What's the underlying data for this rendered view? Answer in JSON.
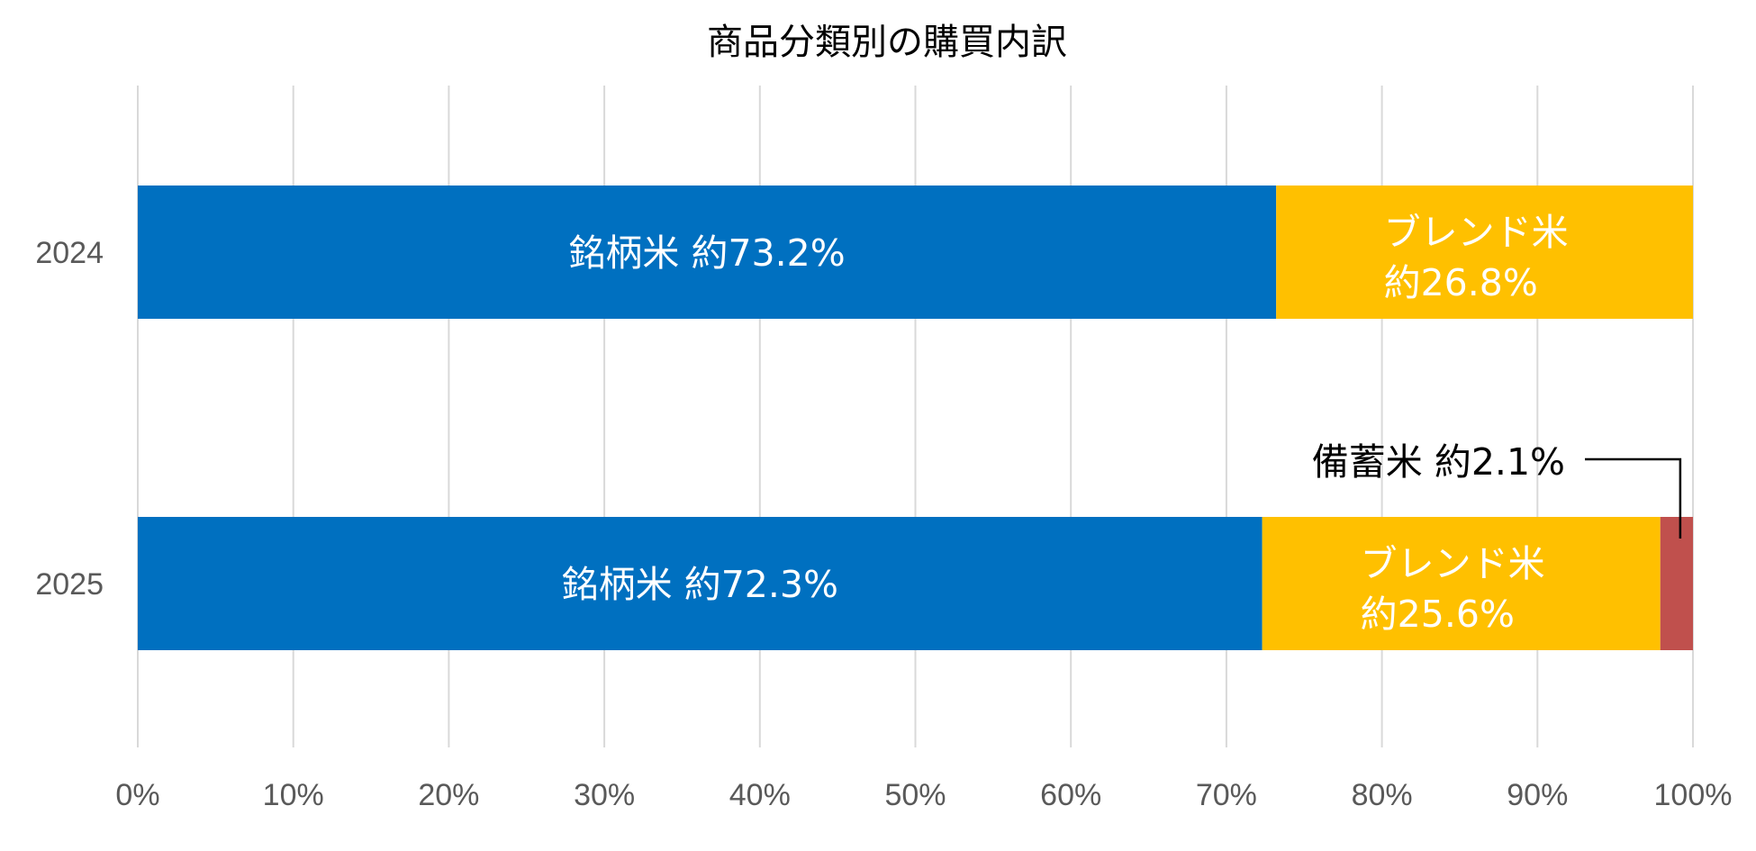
{
  "chart_data": {
    "type": "bar",
    "orientation": "horizontal",
    "stacked": "percent",
    "title": "商品分類別の購買内訳",
    "categories": [
      "2024",
      "2025"
    ],
    "series": [
      {
        "key": "brand",
        "color": "#0070C0",
        "values": [
          73.2,
          72.3
        ],
        "labels": [
          [
            "銘柄米 約73.2%"
          ],
          [
            "銘柄米 約72.3%"
          ]
        ]
      },
      {
        "key": "blend",
        "color": "#FFC000",
        "values": [
          26.8,
          25.6
        ],
        "labels": [
          [
            "ブレンド米",
            "約26.8%"
          ],
          [
            "ブレンド米",
            "約25.6%"
          ]
        ]
      },
      {
        "key": "reserve",
        "color": "#C0504D",
        "values": [
          0,
          2.1
        ],
        "labels": [
          [],
          [
            "備蓄米 約2.1%"
          ]
        ]
      }
    ],
    "xlim": [
      0,
      100
    ],
    "xticks": [
      "0%",
      "10%",
      "20%",
      "30%",
      "40%",
      "50%",
      "60%",
      "70%",
      "80%",
      "90%",
      "100%"
    ],
    "grid": true,
    "legend": "none"
  }
}
